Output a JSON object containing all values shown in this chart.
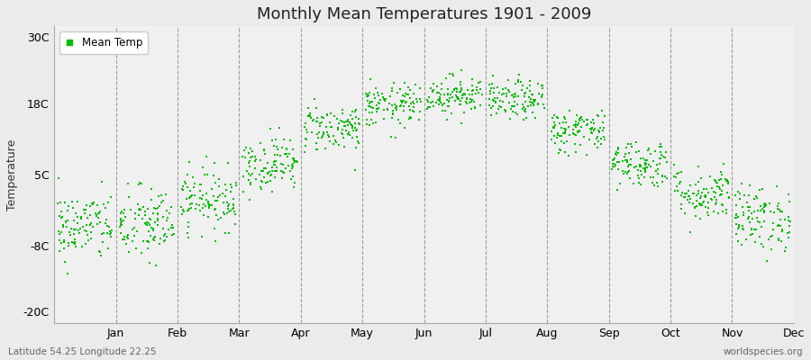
{
  "title": "Monthly Mean Temperatures 1901 - 2009",
  "ylabel": "Temperature",
  "xlabel_bottom_left": "Latitude 54.25 Longitude 22.25",
  "xlabel_bottom_right": "worldspecies.org",
  "ytick_labels": [
    "-20C",
    "-8C",
    "5C",
    "18C",
    "30C"
  ],
  "ytick_values": [
    -20,
    -8,
    5,
    18,
    30
  ],
  "ylim": [
    -22,
    32
  ],
  "months": [
    "Jan",
    "Feb",
    "Mar",
    "Apr",
    "May",
    "Jun",
    "Jul",
    "Aug",
    "Sep",
    "Oct",
    "Nov",
    "Dec"
  ],
  "dot_color": "#00bb00",
  "background_color": "#ebebeb",
  "plot_bg_color": "#f0f0f0",
  "legend_label": "Mean Temp",
  "monthly_means": [
    -4.5,
    -4.2,
    0.5,
    7.0,
    13.5,
    17.5,
    19.5,
    18.5,
    13.0,
    7.0,
    1.5,
    -3.0
  ],
  "monthly_stds": [
    3.2,
    3.5,
    2.8,
    2.5,
    2.2,
    2.0,
    1.8,
    1.8,
    2.0,
    2.2,
    2.5,
    3.0
  ],
  "n_years": 109,
  "seed": 42
}
